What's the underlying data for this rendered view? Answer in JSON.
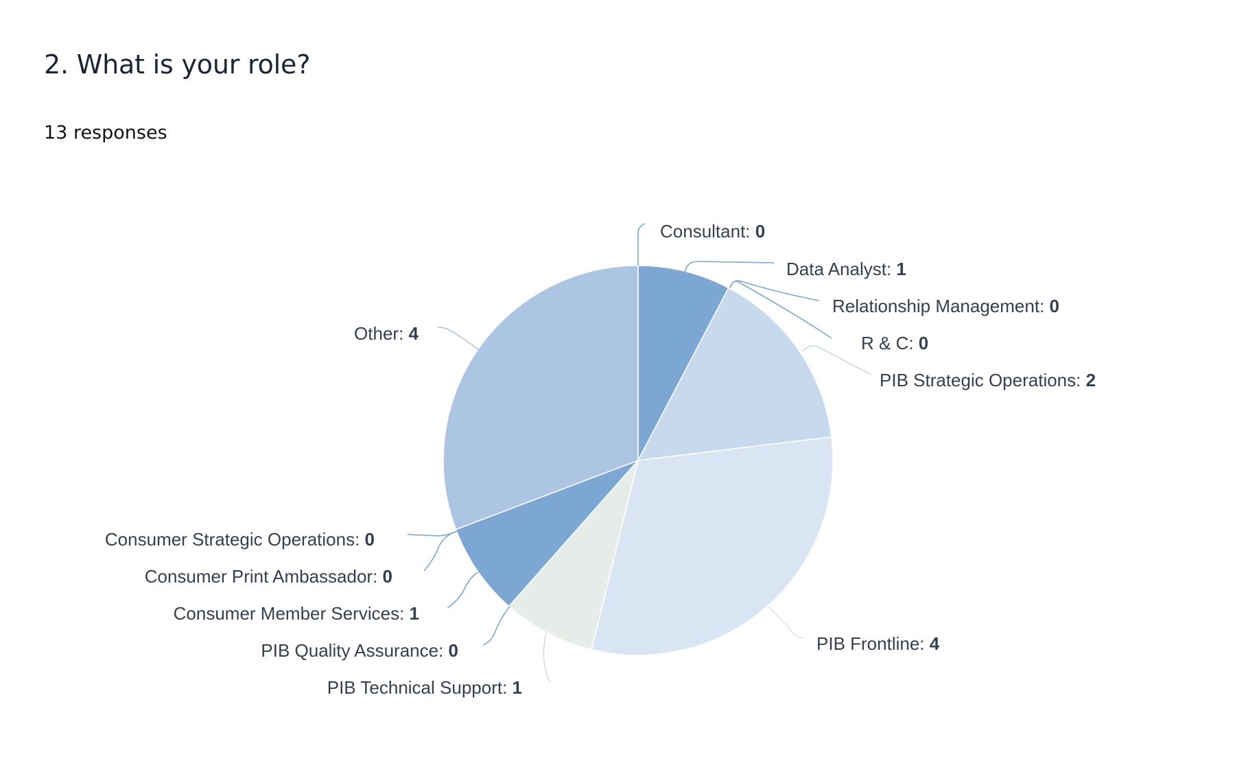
{
  "question": {
    "title": "2. What is your role?",
    "responses": "13 responses"
  },
  "chart_data": {
    "type": "pie",
    "total": 13,
    "slices": [
      {
        "label": "Consultant",
        "value": 0,
        "color": "#7ba7d2"
      },
      {
        "label": "Data Analyst",
        "value": 1,
        "color": "#7ba7d2"
      },
      {
        "label": "Relationship Management",
        "value": 0,
        "color": "#7ba7d2"
      },
      {
        "label": "R & C",
        "value": 0,
        "color": "#7ba7d2"
      },
      {
        "label": "PIB Strategic Operations",
        "value": 2,
        "color": "#c7d9ec"
      },
      {
        "label": "PIB Frontline",
        "value": 4,
        "color": "#d9e5f3"
      },
      {
        "label": "PIB Technical Support",
        "value": 1,
        "color": "#e6ede8"
      },
      {
        "label": "PIB Quality Assurance",
        "value": 0,
        "color": "#7ba7d2"
      },
      {
        "label": "Consumer Member Services",
        "value": 1,
        "color": "#7ba7d2"
      },
      {
        "label": "Consumer Print Ambassador",
        "value": 0,
        "color": "#7ba7d2"
      },
      {
        "label": "Consumer Strategic Operations",
        "value": 0,
        "color": "#7ba7d2"
      },
      {
        "label": "Other",
        "value": 4,
        "color": "#abc5e3"
      }
    ]
  }
}
